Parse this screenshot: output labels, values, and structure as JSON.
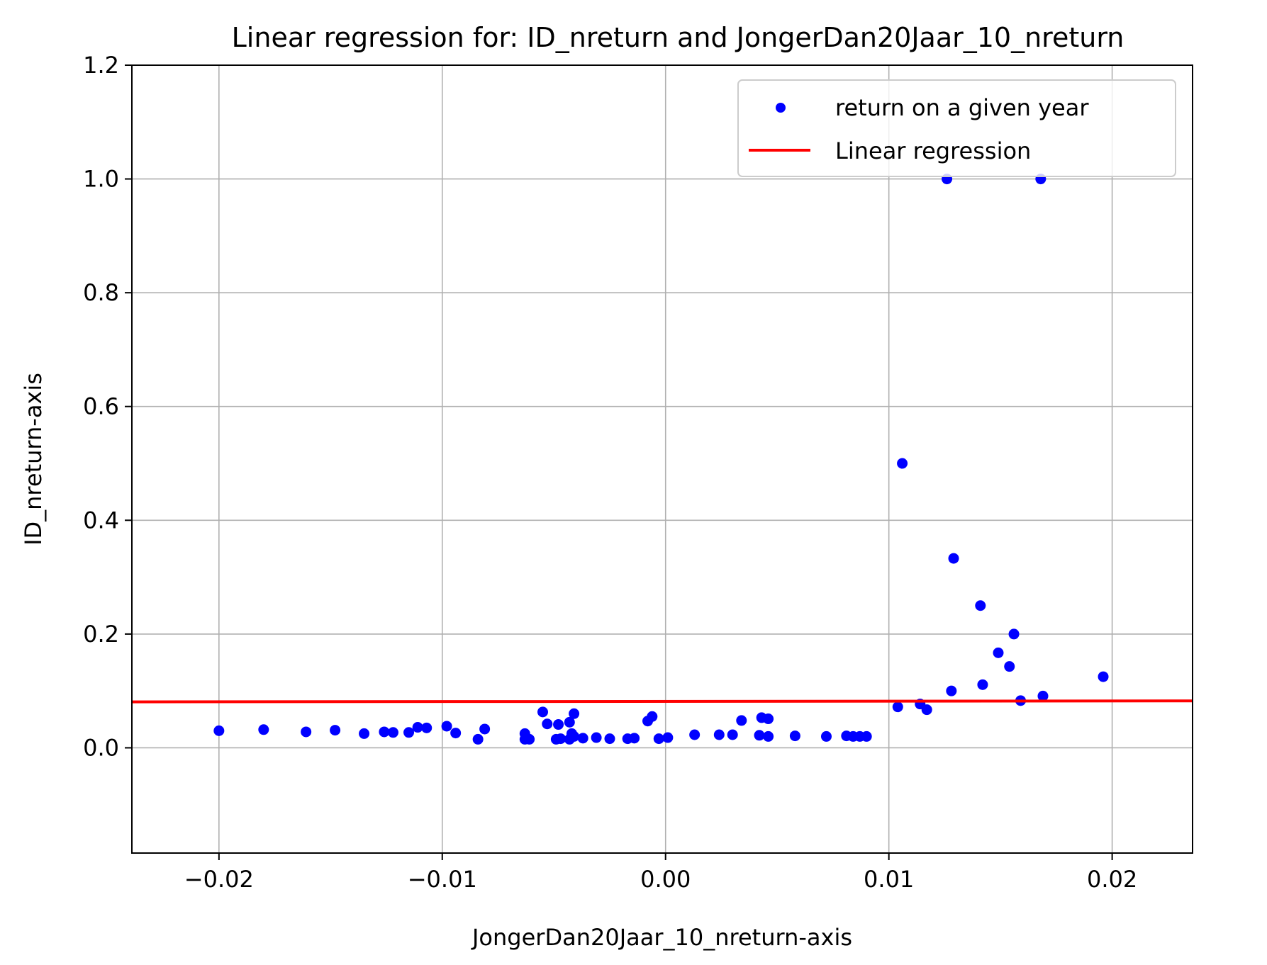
{
  "chart_data": {
    "type": "scatter",
    "title": "Linear regression for: ID_nreturn and JongerDan20Jaar_10_nreturn",
    "xlabel": "JongerDan20Jaar_10_nreturn-axis",
    "ylabel": "ID_nreturn-axis",
    "xlim": [
      -0.0239,
      0.0236
    ],
    "ylim": [
      -0.185,
      1.2
    ],
    "xticks": [
      -0.02,
      -0.01,
      0.0,
      0.01,
      0.02
    ],
    "xtick_labels": [
      "−0.02",
      "−0.01",
      "0.00",
      "0.01",
      "0.02"
    ],
    "yticks": [
      0.0,
      0.2,
      0.4,
      0.6,
      0.8,
      1.0,
      1.2
    ],
    "ytick_labels": [
      "0.0",
      "0.2",
      "0.4",
      "0.6",
      "0.8",
      "1.0",
      "1.2"
    ],
    "grid": true,
    "legend_position": "top-right",
    "series": [
      {
        "name": "return on a given year",
        "kind": "scatter",
        "color": "#0000ff",
        "points": [
          [
            -0.02,
            0.03
          ],
          [
            -0.018,
            0.032
          ],
          [
            -0.0161,
            0.028
          ],
          [
            -0.0148,
            0.031
          ],
          [
            -0.0135,
            0.025
          ],
          [
            -0.0126,
            0.028
          ],
          [
            -0.0122,
            0.027
          ],
          [
            -0.0115,
            0.027
          ],
          [
            -0.0111,
            0.036
          ],
          [
            -0.0107,
            0.035
          ],
          [
            -0.0098,
            0.038
          ],
          [
            -0.0094,
            0.026
          ],
          [
            -0.0084,
            0.015
          ],
          [
            -0.0081,
            0.033
          ],
          [
            -0.0063,
            0.025
          ],
          [
            -0.0063,
            0.015
          ],
          [
            -0.0061,
            0.015
          ],
          [
            -0.0055,
            0.063
          ],
          [
            -0.0053,
            0.042
          ],
          [
            -0.0049,
            0.015
          ],
          [
            -0.0048,
            0.041
          ],
          [
            -0.0047,
            0.016
          ],
          [
            -0.0043,
            0.015
          ],
          [
            -0.0043,
            0.045
          ],
          [
            -0.0042,
            0.025
          ],
          [
            -0.0041,
            0.06
          ],
          [
            -0.0041,
            0.02
          ],
          [
            -0.0037,
            0.017
          ],
          [
            -0.0031,
            0.018
          ],
          [
            -0.0025,
            0.016
          ],
          [
            -0.0017,
            0.016
          ],
          [
            -0.0014,
            0.017
          ],
          [
            -0.0008,
            0.047
          ],
          [
            -0.0006,
            0.055
          ],
          [
            -0.0003,
            0.016
          ],
          [
            0.0001,
            0.018
          ],
          [
            0.0013,
            0.023
          ],
          [
            0.0024,
            0.023
          ],
          [
            0.003,
            0.023
          ],
          [
            0.0034,
            0.048
          ],
          [
            0.0042,
            0.022
          ],
          [
            0.0043,
            0.053
          ],
          [
            0.0046,
            0.051
          ],
          [
            0.0046,
            0.02
          ],
          [
            0.0058,
            0.021
          ],
          [
            0.0072,
            0.02
          ],
          [
            0.0081,
            0.021
          ],
          [
            0.0084,
            0.02
          ],
          [
            0.0087,
            0.02
          ],
          [
            0.009,
            0.02
          ],
          [
            0.0104,
            0.072
          ],
          [
            0.0106,
            0.5
          ],
          [
            0.0114,
            0.077
          ],
          [
            0.0117,
            0.067
          ],
          [
            0.0126,
            1.0
          ],
          [
            0.0128,
            0.1
          ],
          [
            0.0129,
            0.333
          ],
          [
            0.0141,
            0.25
          ],
          [
            0.0142,
            0.111
          ],
          [
            0.0149,
            0.167
          ],
          [
            0.0154,
            0.143
          ],
          [
            0.0156,
            0.2
          ],
          [
            0.0159,
            0.083
          ],
          [
            0.0168,
            1.0
          ],
          [
            0.0169,
            0.091
          ],
          [
            0.0196,
            0.125
          ]
        ]
      },
      {
        "name": "Linear regression",
        "kind": "line",
        "color": "#ff0000",
        "points": [
          [
            -0.0239,
            0.0808
          ],
          [
            0.0236,
            0.0825
          ]
        ]
      }
    ]
  }
}
